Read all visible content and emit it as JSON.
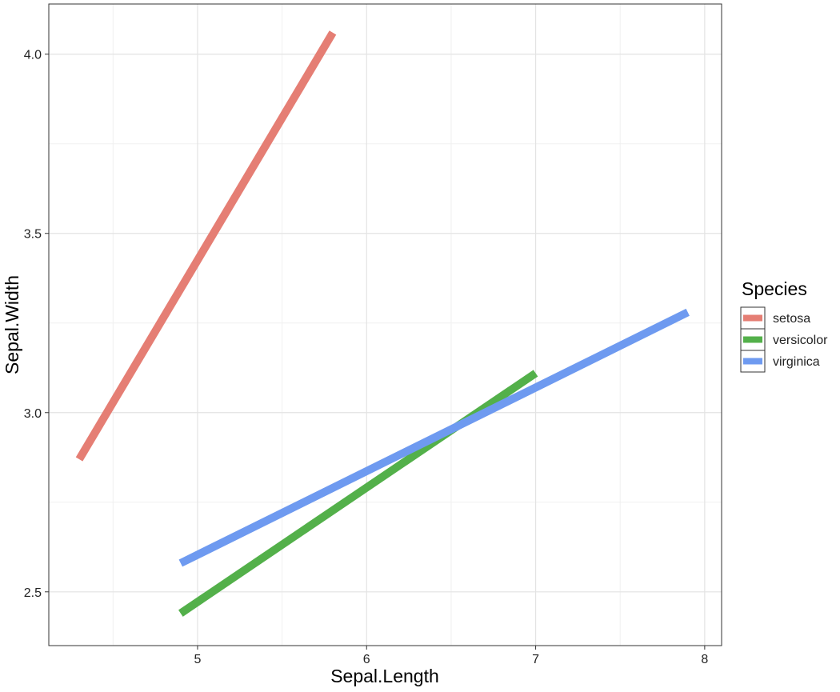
{
  "chart_data": {
    "type": "line",
    "xlabel": "Sepal.Length",
    "ylabel": "Sepal.Width",
    "xlim": [
      4.12,
      8.1
    ],
    "ylim": [
      2.35,
      4.14
    ],
    "x_ticks": [
      5,
      6,
      7,
      8
    ],
    "x_tick_labels": [
      "5",
      "6",
      "7",
      "8"
    ],
    "y_ticks": [
      2.5,
      3.0,
      3.5,
      4.0
    ],
    "y_tick_labels": [
      "2.5",
      "3.0",
      "3.5",
      "4.0"
    ],
    "grid": true,
    "legend": {
      "title": "Species",
      "position": "right"
    },
    "series": [
      {
        "name": "setosa",
        "color": "#E57E74",
        "x": [
          4.3,
          5.8
        ],
        "y": [
          2.87,
          4.06
        ]
      },
      {
        "name": "versicolor",
        "color": "#53B04A",
        "x": [
          4.9,
          7.0
        ],
        "y": [
          2.44,
          3.11
        ]
      },
      {
        "name": "virginica",
        "color": "#6E9AF0",
        "x": [
          4.9,
          7.9
        ],
        "y": [
          2.58,
          3.28
        ]
      }
    ]
  }
}
